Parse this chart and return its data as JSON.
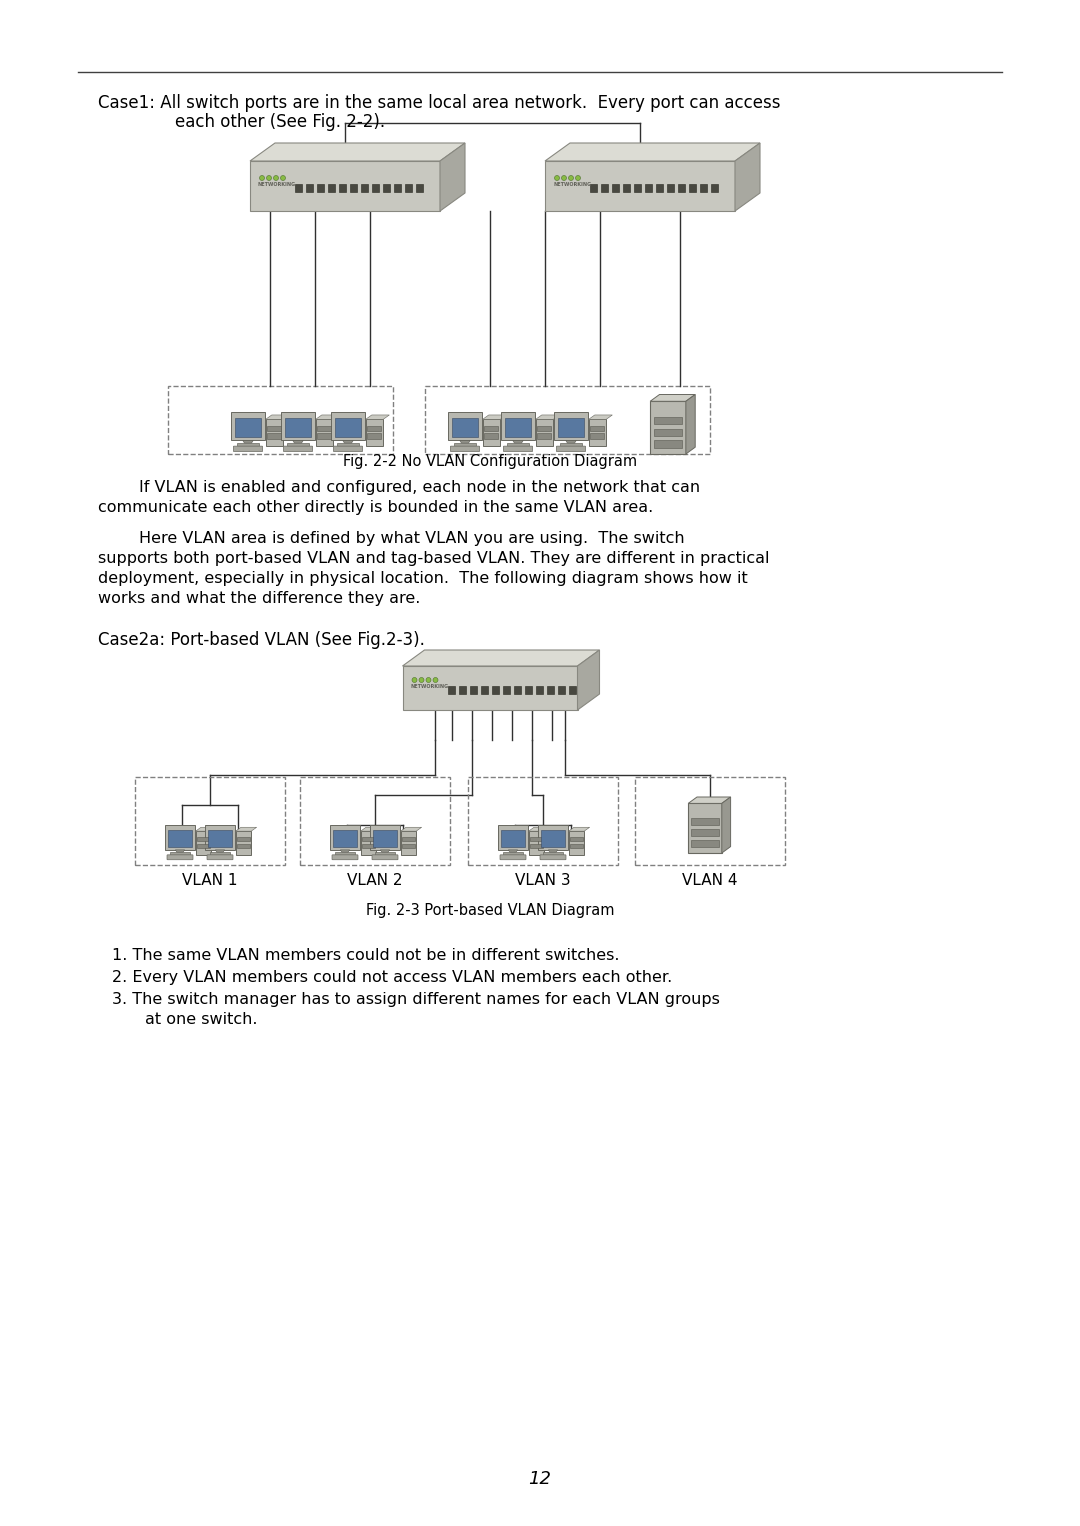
{
  "bg_color": "#ffffff",
  "page_width": 10.8,
  "page_height": 15.26,
  "case1_text_line1": "Case1: All switch ports are in the same local area network.  Every port can access",
  "case1_text_line2": "each other (See Fig. 2-2).",
  "fig22_caption": "Fig. 2-2 No VLAN Configuration Diagram",
  "para1_indent": "        If VLAN is enabled and configured, each node in the network that can",
  "para1_line2": "communicate each other directly is bounded in the same VLAN area.",
  "para2_indent": "        Here VLAN area is defined by what VLAN you are using.  The switch",
  "para2_line2": "supports both port-based VLAN and tag-based VLAN. They are different in practical",
  "para2_line3": "deployment, especially in physical location.  The following diagram shows how it",
  "para2_line4": "works and what the difference they are.",
  "case2a_text": "Case2a: Port-based VLAN (See Fig.2-3).",
  "fig23_caption": "Fig. 2-3 Port-based VLAN Diagram",
  "bullet1": "1. The same VLAN members could not be in different switches.",
  "bullet2": "2. Every VLAN members could not access VLAN members each other.",
  "bullet3a": "3. The switch manager has to assign different names for each VLAN groups",
  "bullet3b": "   at one switch.",
  "page_num": "12",
  "wire_color": "#303030",
  "dashed_color": "#808080",
  "vlan_labels": [
    "VLAN 1",
    "VLAN 2",
    "VLAN 3",
    "VLAN 4"
  ],
  "text_fontsize": 11.5,
  "case_fontsize": 12.0,
  "caption_fontsize": 10.5
}
